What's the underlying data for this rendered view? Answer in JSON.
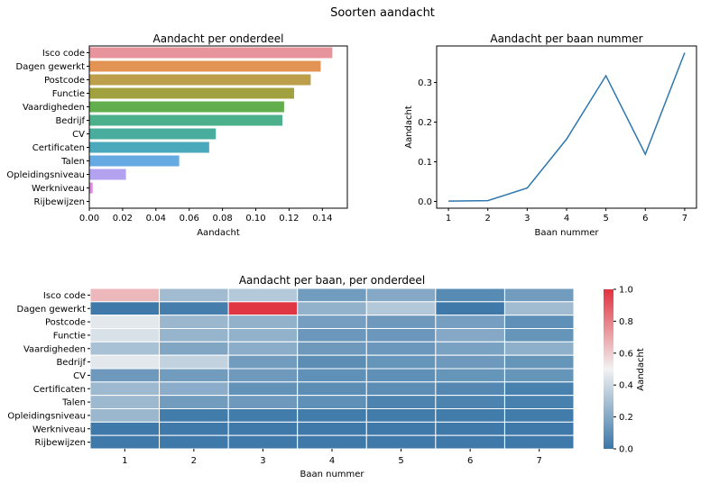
{
  "figure_title": "Soorten aandacht",
  "chart_data": [
    {
      "type": "bar",
      "orientation": "horizontal",
      "title": "Aandacht per onderdeel",
      "xlabel": "Aandacht",
      "ylabel": "",
      "xlim": [
        0,
        0.155
      ],
      "xticks": [
        "0.00",
        "0.02",
        "0.04",
        "0.06",
        "0.08",
        "0.10",
        "0.12",
        "0.14"
      ],
      "categories": [
        "Isco code",
        "Dagen gewerkt",
        "Postcode",
        "Functie",
        "Vaardigheden",
        "Bedrijf",
        "CV",
        "Certificaten",
        "Talen",
        "Opleidingsniveau",
        "Werkniveau",
        "Rijbewijzen"
      ],
      "values": [
        0.146,
        0.139,
        0.133,
        0.123,
        0.117,
        0.116,
        0.076,
        0.072,
        0.054,
        0.022,
        0.002,
        0.0
      ],
      "colors": [
        "#e8949d",
        "#e39455",
        "#bd9e4a",
        "#a1a13f",
        "#62ad4c",
        "#4bb08b",
        "#49ad9e",
        "#4aaabc",
        "#65aae2",
        "#b3a2ef",
        "#e08be0",
        "#e891c1"
      ],
      "grid": false
    },
    {
      "type": "line",
      "title": "Aandacht per baan nummer",
      "xlabel": "Baan nummer",
      "ylabel": "Aandacht",
      "x": [
        1,
        2,
        3,
        4,
        5,
        6,
        7
      ],
      "y": [
        0.001,
        0.002,
        0.034,
        0.157,
        0.317,
        0.119,
        0.375
      ],
      "xlim": [
        0.7,
        7.3
      ],
      "ylim": [
        -0.017,
        0.392
      ],
      "xticks": [
        "1",
        "2",
        "3",
        "4",
        "5",
        "6",
        "7"
      ],
      "yticks": [
        0.0,
        0.1,
        0.2,
        0.3
      ],
      "ytick_labels": [
        "0.0",
        "0.1",
        "0.2",
        "0.3"
      ],
      "color": "#2f77ae",
      "grid": false
    },
    {
      "type": "heatmap",
      "title": "Aandacht per baan, per onderdeel",
      "xlabel": "Baan nummer",
      "ylabel": "",
      "x": [
        "1",
        "2",
        "3",
        "4",
        "5",
        "6",
        "7"
      ],
      "y": [
        "Isco code",
        "Dagen gewerkt",
        "Postcode",
        "Functie",
        "Vaardigheden",
        "Bedrijf",
        "CV",
        "Certificaten",
        "Talen",
        "Opleidingsniveau",
        "Werkniveau",
        "Rijbewijzen"
      ],
      "values": [
        [
          0.65,
          0.28,
          0.33,
          0.15,
          0.2,
          0.08,
          0.15
        ],
        [
          0.01,
          0.03,
          0.99,
          0.24,
          0.33,
          0.01,
          0.28
        ],
        [
          0.46,
          0.26,
          0.24,
          0.16,
          0.14,
          0.16,
          0.1
        ],
        [
          0.43,
          0.25,
          0.24,
          0.13,
          0.13,
          0.2,
          0.12
        ],
        [
          0.3,
          0.19,
          0.22,
          0.14,
          0.13,
          0.17,
          0.23
        ],
        [
          0.46,
          0.37,
          0.15,
          0.09,
          0.12,
          0.14,
          0.12
        ],
        [
          0.14,
          0.15,
          0.14,
          0.1,
          0.1,
          0.12,
          0.12
        ],
        [
          0.27,
          0.22,
          0.11,
          0.09,
          0.09,
          0.07,
          0.04
        ],
        [
          0.27,
          0.15,
          0.14,
          0.1,
          0.05,
          0.05,
          0.04
        ],
        [
          0.26,
          0.02,
          0.02,
          0.02,
          0.02,
          0.02,
          0.02
        ],
        [
          0.01,
          0.01,
          0.01,
          0.01,
          0.01,
          0.01,
          0.01
        ],
        [
          0.01,
          0.01,
          0.01,
          0.01,
          0.01,
          0.01,
          0.01
        ]
      ],
      "colorbar": {
        "label": "Aandacht",
        "range": [
          0.0,
          1.0
        ],
        "ticks": [
          "0.0",
          "0.2",
          "0.4",
          "0.6",
          "0.8",
          "1.0"
        ],
        "colors": [
          "#3a77a8",
          "#f2f2f2",
          "#e0323f"
        ]
      }
    }
  ]
}
